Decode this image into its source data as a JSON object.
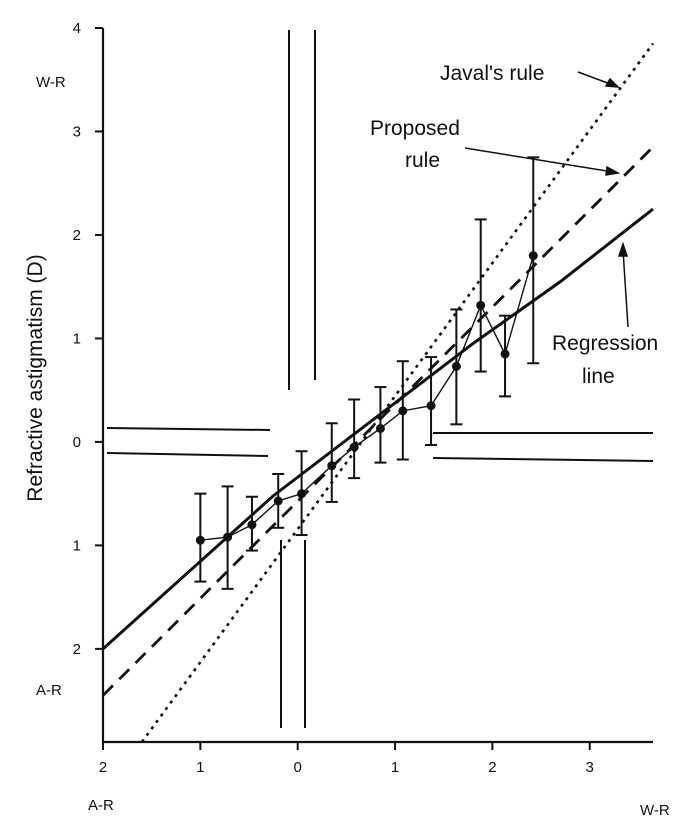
{
  "chart_data": {
    "type": "line",
    "title": "",
    "xlabel": "",
    "ylabel": "Refractive astigmatism (D)",
    "x_axis": {
      "range": [
        -2,
        3.65
      ],
      "ticks": [
        -2,
        -1,
        0,
        1,
        2,
        3
      ],
      "tick_labels": [
        "2",
        "1",
        "0",
        "1",
        "2",
        "3"
      ],
      "end_labels": {
        "negative": "A-R",
        "positive": "W-R"
      }
    },
    "y_axis": {
      "range": [
        -2.9,
        4
      ],
      "ticks": [
        -2,
        -1,
        0,
        1,
        2,
        3,
        4
      ],
      "tick_labels": [
        "2",
        "1",
        "0",
        "1",
        "2",
        "3",
        "4"
      ],
      "end_labels": {
        "negative": "A-R",
        "positive": "W-R"
      }
    },
    "grid": false,
    "series": [
      {
        "name": "Javal's rule",
        "style": "dotted",
        "x": [
          -1.6,
          3.65
        ],
        "y": [
          -2.9,
          3.85
        ]
      },
      {
        "name": "Proposed rule",
        "style": "dashed",
        "x": [
          -2,
          3.65
        ],
        "y": [
          -2.45,
          2.85
        ]
      },
      {
        "name": "Regression line",
        "style": "solid",
        "x": [
          -2,
          -0.25,
          1.8,
          2.7,
          3.65
        ],
        "y": [
          -2.0,
          -0.52,
          0.95,
          1.55,
          2.25
        ]
      },
      {
        "name": "",
        "style": "markers-with-error-bars",
        "x": [
          -1.0,
          -0.72,
          -0.47,
          -0.2,
          0.04,
          0.35,
          0.58,
          0.85,
          1.08,
          1.37,
          1.63,
          1.88,
          2.13,
          2.42
        ],
        "y": [
          -0.95,
          -0.92,
          -0.8,
          -0.57,
          -0.5,
          -0.23,
          -0.05,
          0.13,
          0.3,
          0.35,
          0.73,
          1.32,
          0.85,
          1.8
        ],
        "error_low": [
          -1.35,
          -1.42,
          -1.05,
          -0.83,
          -0.9,
          -0.58,
          -0.35,
          -0.2,
          -0.17,
          -0.03,
          0.17,
          0.68,
          0.44,
          0.76
        ],
        "error_high": [
          -0.5,
          -0.43,
          -0.53,
          -0.31,
          -0.09,
          0.18,
          0.41,
          0.53,
          0.78,
          0.82,
          1.28,
          2.15,
          1.22,
          2.75
        ]
      }
    ],
    "annotations": [
      {
        "text": "Javal's rule",
        "points_to": "Javal's rule"
      },
      {
        "text": "Proposed",
        "points_to": "Proposed rule"
      },
      {
        "text": "rule",
        "points_to": "Proposed rule"
      },
      {
        "text": "Regression",
        "points_to": "Regression line"
      },
      {
        "text": "line",
        "points_to": "Regression line"
      }
    ],
    "legend": "none"
  }
}
